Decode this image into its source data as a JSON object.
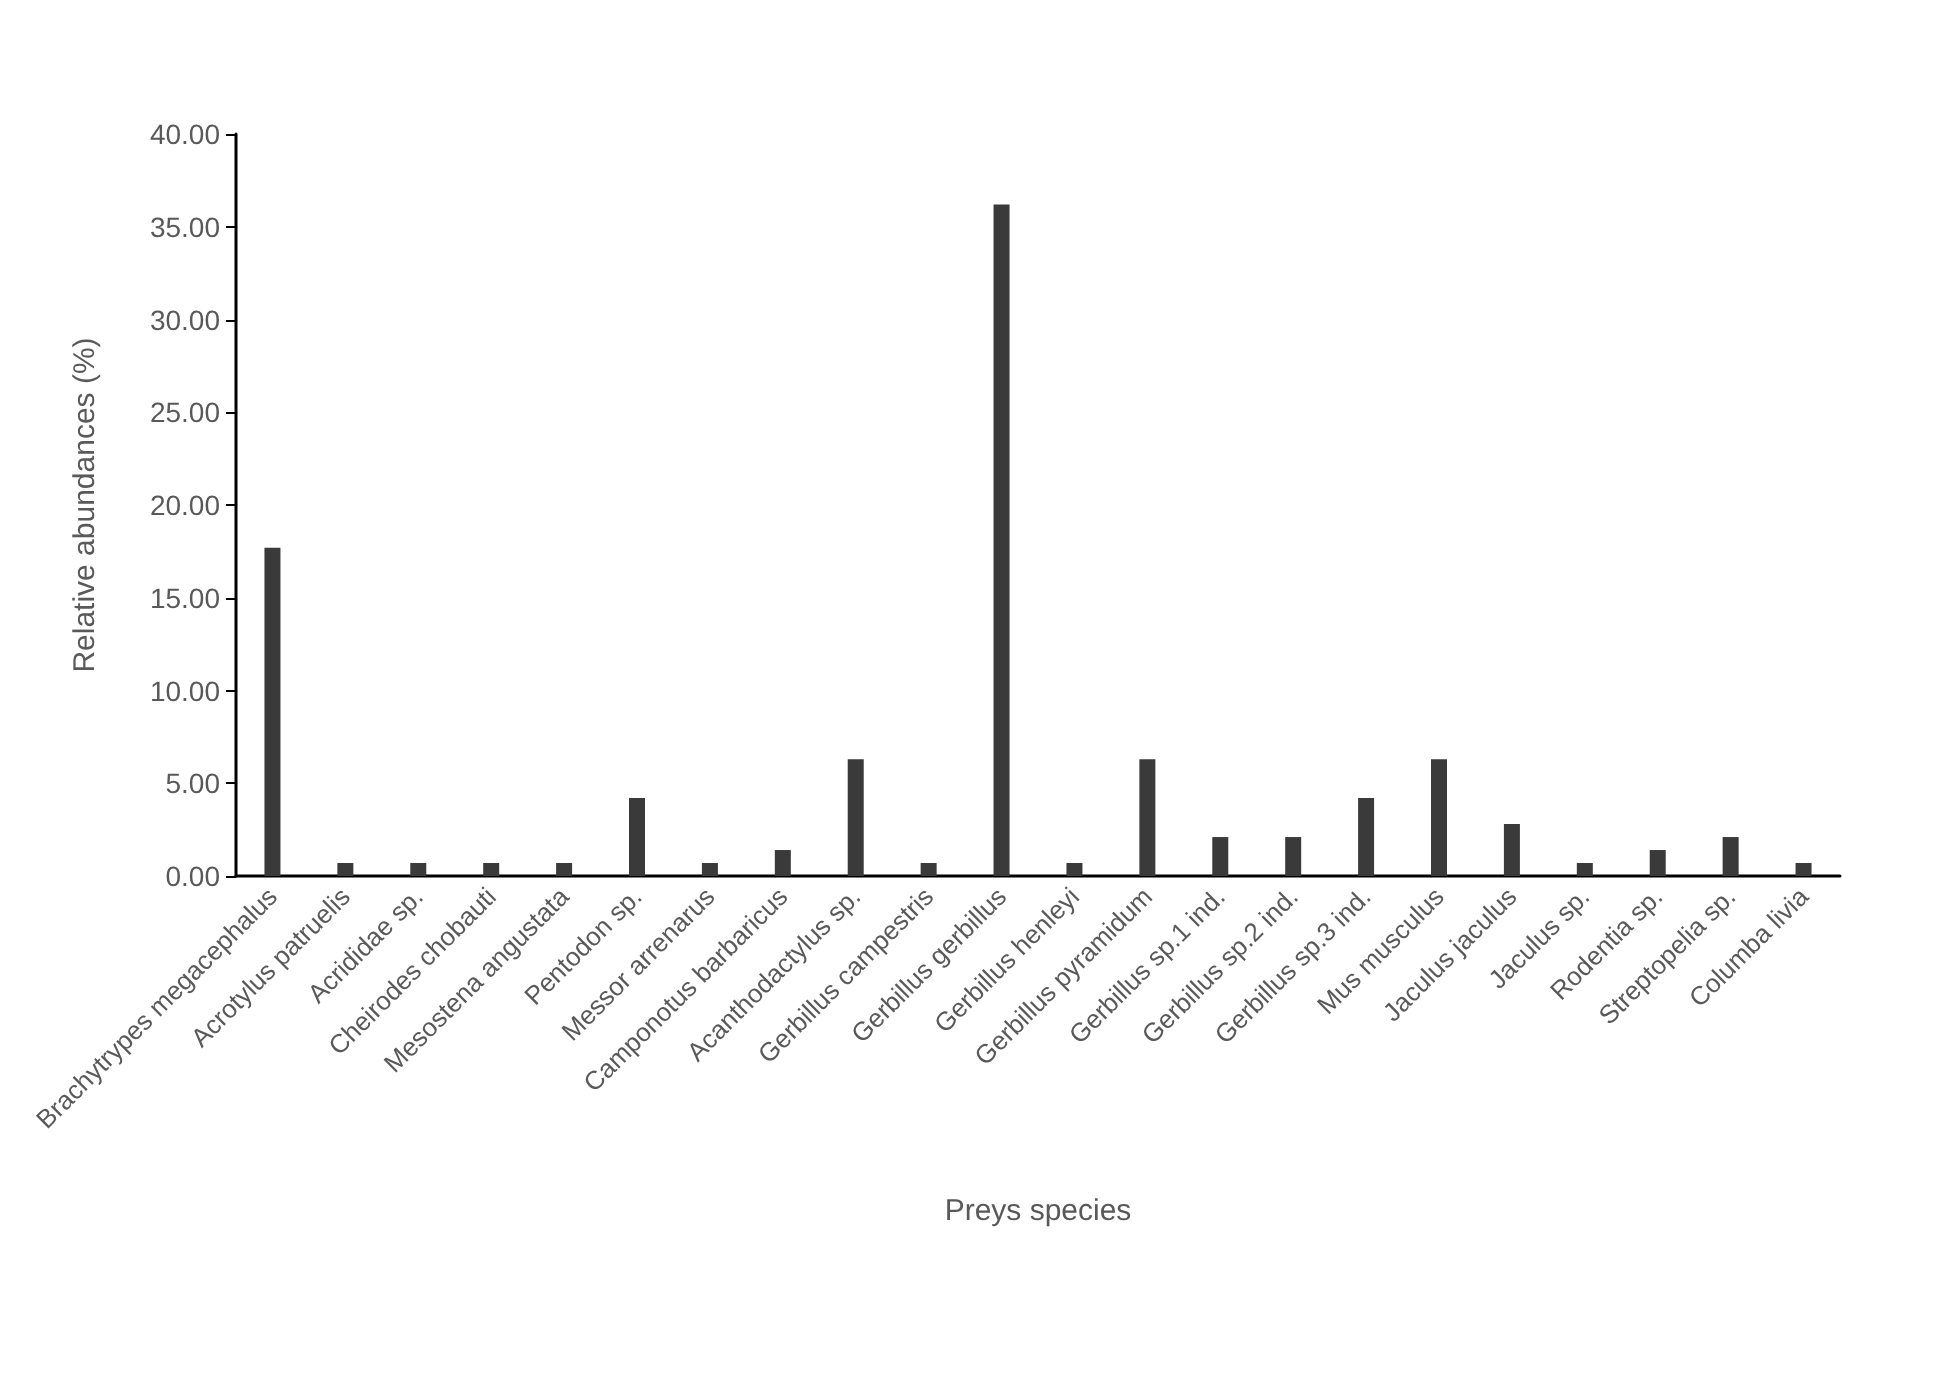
{
  "chart_data": {
    "type": "bar",
    "xlabel": "Preys species",
    "ylabel": "Relative abundances (%)",
    "categories": [
      "Brachytrypes megacephalus",
      "Acrotylus patruelis",
      "Acrididae sp.",
      "Cheirodes chobauti",
      "Mesostena angustata",
      "Pentodon sp.",
      "Messor arrenarus",
      "Camponotus barbaricus",
      "Acanthodactylus sp.",
      "Gerbillus campestris",
      "Gerbillus gerbillus",
      "Gerbillus henleyi",
      "Gerbillus pyramidum",
      "Gerbillus sp.1 ind.",
      "Gerbillus sp.2 ind.",
      "Gerbillus sp.3 ind.",
      "Mus musculus",
      "Jaculus jaculus",
      "Jaculus sp.",
      "Rodentia sp.",
      "Streptopelia sp.",
      "Columba livia"
    ],
    "values": [
      17.7,
      0.7,
      0.7,
      0.7,
      0.7,
      4.2,
      0.7,
      1.4,
      6.3,
      0.7,
      36.2,
      0.7,
      6.3,
      2.1,
      2.1,
      4.2,
      6.3,
      2.8,
      0.7,
      1.4,
      2.1,
      0.7
    ],
    "color": "#3a3a3a",
    "ylim": [
      0,
      40
    ],
    "yticks": [
      {
        "value": 0,
        "label": "0.00"
      },
      {
        "value": 5,
        "label": "5.00"
      },
      {
        "value": 10,
        "label": "10.00"
      },
      {
        "value": 15,
        "label": "15.00"
      },
      {
        "value": 20,
        "label": "20.00"
      },
      {
        "value": 25,
        "label": "25.00"
      },
      {
        "value": 30,
        "label": "30.00"
      },
      {
        "value": 35,
        "label": "35.00"
      },
      {
        "value": 40,
        "label": "40.00"
      }
    ],
    "data_labels": false
  }
}
